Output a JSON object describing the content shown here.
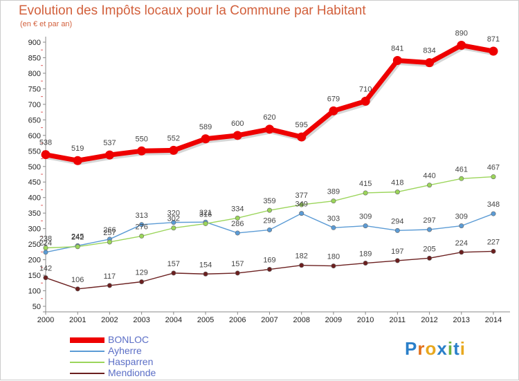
{
  "chart_data": {
    "type": "line",
    "title": "Evolution des Impôts locaux pour la Commune par Habitant",
    "subtitle": "(en € et par an)",
    "xlabel": "",
    "ylabel": "",
    "categories": [
      "2000",
      "2001",
      "2002",
      "2003",
      "2004",
      "2005",
      "2006",
      "2007",
      "2008",
      "2009",
      "2010",
      "2011",
      "2012",
      "2013",
      "2014"
    ],
    "ylim": [
      50,
      900
    ],
    "yticks": [
      50,
      100,
      150,
      200,
      250,
      300,
      350,
      400,
      450,
      500,
      550,
      600,
      650,
      700,
      750,
      800,
      850,
      900
    ],
    "grid": false,
    "legend_position": "bottom-left",
    "series": [
      {
        "name": "BONLOC",
        "color": "#ee0000",
        "values": [
          538,
          519,
          537,
          550,
          552,
          589,
          600,
          620,
          595,
          679,
          710,
          841,
          834,
          890,
          871
        ]
      },
      {
        "name": "Ayherre",
        "color": "#5b9bd5",
        "values": [
          224,
          245,
          266,
          313,
          320,
          321,
          286,
          296,
          349,
          303,
          309,
          294,
          297,
          309,
          348
        ]
      },
      {
        "name": "Hasparren",
        "color": "#9bd55a",
        "values": [
          238,
          242,
          257,
          276,
          302,
          316,
          334,
          359,
          377,
          389,
          415,
          418,
          440,
          461,
          467
        ]
      },
      {
        "name": "Mendionde",
        "color": "#6b1f1f",
        "values": [
          142,
          106,
          117,
          129,
          157,
          154,
          157,
          169,
          182,
          180,
          189,
          197,
          205,
          224,
          227
        ]
      }
    ]
  },
  "branding": {
    "logo_text": "Proxiti",
    "letter_colors": [
      "#2a7fc9",
      "#e2701b",
      "#e8a81f",
      "#2a7fc9",
      "#6cb33f",
      "#2a7fc9",
      "#e8a81f"
    ]
  }
}
